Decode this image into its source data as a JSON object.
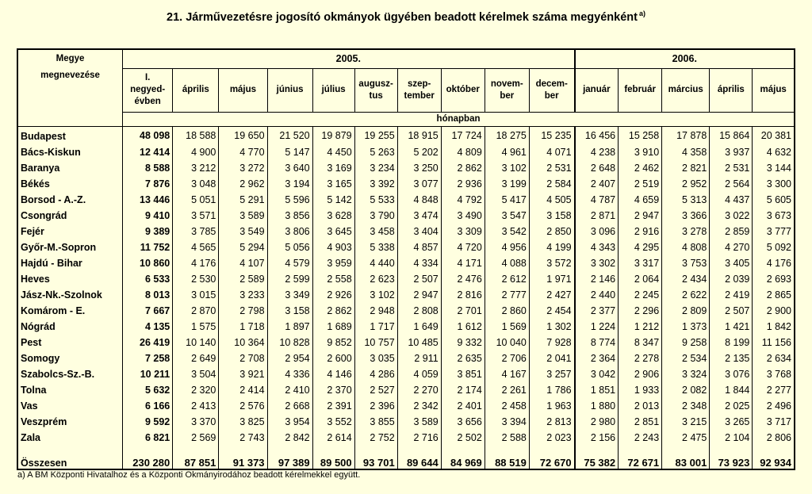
{
  "title": "21. Járművezetésre jogosító okmányok ügyében beadott kérelmek száma megyénként",
  "title_note": "a)",
  "header": {
    "county_label_line1": "Megye",
    "county_label_line2": "megnevezése",
    "year1": "2005.",
    "year2": "2006.",
    "unit_label": "hónapban",
    "col_q1_line1": "I.",
    "col_q1_line2": "negyed-",
    "col_q1_line3": "évben",
    "months_2005": [
      {
        "l1": "április",
        "l2": ""
      },
      {
        "l1": "május",
        "l2": ""
      },
      {
        "l1": "június",
        "l2": ""
      },
      {
        "l1": "július",
        "l2": ""
      },
      {
        "l1": "augusz-",
        "l2": "tus"
      },
      {
        "l1": "szep-",
        "l2": "tember"
      },
      {
        "l1": "október",
        "l2": ""
      },
      {
        "l1": "novem-",
        "l2": "ber"
      },
      {
        "l1": "decem-",
        "l2": "ber"
      }
    ],
    "months_2006": [
      {
        "l1": "január",
        "l2": ""
      },
      {
        "l1": "február",
        "l2": ""
      },
      {
        "l1": "március",
        "l2": ""
      },
      {
        "l1": "április",
        "l2": ""
      },
      {
        "l1": "május",
        "l2": ""
      }
    ]
  },
  "rows": [
    {
      "name": "Budapest",
      "values": [
        "48 098",
        "18 588",
        "19 650",
        "21 520",
        "19 879",
        "19 255",
        "18 915",
        "17 724",
        "18 275",
        "15 235",
        "16 456",
        "15 258",
        "17 878",
        "15 864",
        "20 381"
      ]
    },
    {
      "name": "Bács-Kiskun",
      "values": [
        "12 414",
        "4 900",
        "4 770",
        "5 147",
        "4 450",
        "5 263",
        "5 202",
        "4 809",
        "4 961",
        "4 071",
        "4 238",
        "3 910",
        "4 358",
        "3 937",
        "4 632"
      ]
    },
    {
      "name": "Baranya",
      "values": [
        "8 588",
        "3 212",
        "3 272",
        "3 640",
        "3 169",
        "3 234",
        "3 250",
        "2 862",
        "3 102",
        "2 531",
        "2 648",
        "2 462",
        "2 821",
        "2 531",
        "3 144"
      ]
    },
    {
      "name": "Békés",
      "values": [
        "7 876",
        "3 048",
        "2 962",
        "3 194",
        "3 165",
        "3 392",
        "3 077",
        "2 936",
        "3 199",
        "2 584",
        "2 407",
        "2 519",
        "2 952",
        "2 564",
        "3 300"
      ]
    },
    {
      "name": "Borsod - A.-Z.",
      "values": [
        "13 446",
        "5 051",
        "5 291",
        "5 596",
        "5 142",
        "5 533",
        "4 848",
        "4 792",
        "5 417",
        "4 505",
        "4 787",
        "4 659",
        "5 313",
        "4 437",
        "5 605"
      ]
    },
    {
      "name": "Csongrád",
      "values": [
        "9 410",
        "3 571",
        "3 589",
        "3 856",
        "3 628",
        "3 790",
        "3 474",
        "3 490",
        "3 547",
        "3 158",
        "2 871",
        "2 947",
        "3 366",
        "3 022",
        "3 673"
      ]
    },
    {
      "name": "Fejér",
      "values": [
        "9 389",
        "3 785",
        "3 549",
        "3 806",
        "3 645",
        "3 458",
        "3 404",
        "3 309",
        "3 542",
        "2 850",
        "3 096",
        "2 916",
        "3 278",
        "2 859",
        "3 777"
      ]
    },
    {
      "name": "Győr-M.-Sopron",
      "values": [
        "11 752",
        "4 565",
        "5 294",
        "5 056",
        "4 903",
        "5 338",
        "4 857",
        "4 720",
        "4 956",
        "4 199",
        "4 343",
        "4 295",
        "4 808",
        "4 270",
        "5 092"
      ]
    },
    {
      "name": "Hajdú - Bihar",
      "values": [
        "10 860",
        "4 176",
        "4 107",
        "4 579",
        "3 959",
        "4 440",
        "4 334",
        "4 171",
        "4 088",
        "3 572",
        "3 302",
        "3 317",
        "3 753",
        "3 405",
        "4 176"
      ]
    },
    {
      "name": "Heves",
      "values": [
        "6 533",
        "2 530",
        "2 589",
        "2 599",
        "2 558",
        "2 623",
        "2 507",
        "2 476",
        "2 612",
        "1 971",
        "2 146",
        "2 064",
        "2 434",
        "2 039",
        "2 693"
      ]
    },
    {
      "name": "Jász-Nk.-Szolnok",
      "values": [
        "8 013",
        "3 015",
        "3 233",
        "3 349",
        "2 926",
        "3 102",
        "2 947",
        "2 816",
        "2 777",
        "2 427",
        "2 440",
        "2 245",
        "2 622",
        "2 419",
        "2 865"
      ]
    },
    {
      "name": "Komárom - E.",
      "values": [
        "7 667",
        "2 870",
        "2 798",
        "3 158",
        "2 862",
        "2 948",
        "2 808",
        "2 701",
        "2 860",
        "2 454",
        "2 377",
        "2 296",
        "2 809",
        "2 507",
        "2 900"
      ]
    },
    {
      "name": "Nógrád",
      "values": [
        "4 135",
        "1 575",
        "1 718",
        "1 897",
        "1 689",
        "1 717",
        "1 649",
        "1 612",
        "1 569",
        "1 302",
        "1 224",
        "1 212",
        "1 373",
        "1 421",
        "1 842"
      ]
    },
    {
      "name": "Pest",
      "values": [
        "26 419",
        "10 140",
        "10 364",
        "10 828",
        "9 852",
        "10 757",
        "10 485",
        "9 332",
        "10 040",
        "7 928",
        "8 774",
        "8 347",
        "9 258",
        "8 199",
        "11 156"
      ]
    },
    {
      "name": "Somogy",
      "values": [
        "7 258",
        "2 649",
        "2 708",
        "2 954",
        "2 600",
        "3 035",
        "2 911",
        "2 635",
        "2 706",
        "2 041",
        "2 364",
        "2 278",
        "2 534",
        "2 135",
        "2 634"
      ]
    },
    {
      "name": "Szabolcs-Sz.-B.",
      "values": [
        "10 211",
        "3 504",
        "3 921",
        "4 336",
        "4 146",
        "4 286",
        "4 059",
        "3 851",
        "4 167",
        "3 257",
        "3 042",
        "2 906",
        "3 324",
        "3 076",
        "3 768"
      ]
    },
    {
      "name": "Tolna",
      "values": [
        "5 632",
        "2 320",
        "2 414",
        "2 410",
        "2 370",
        "2 527",
        "2 270",
        "2 174",
        "2 261",
        "1 786",
        "1 851",
        "1 933",
        "2 082",
        "1 844",
        "2 277"
      ]
    },
    {
      "name": "Vas",
      "values": [
        "6 166",
        "2 413",
        "2 576",
        "2 668",
        "2 391",
        "2 396",
        "2 342",
        "2 401",
        "2 458",
        "1 963",
        "1 880",
        "2 013",
        "2 348",
        "2 025",
        "2 496"
      ]
    },
    {
      "name": "Veszprém",
      "values": [
        "9 592",
        "3 370",
        "3 825",
        "3 954",
        "3 552",
        "3 855",
        "3 589",
        "3 656",
        "3 394",
        "2 813",
        "2 980",
        "2 851",
        "3 215",
        "3 265",
        "3 717"
      ]
    },
    {
      "name": "Zala",
      "values": [
        "6 821",
        "2 569",
        "2 743",
        "2 842",
        "2 614",
        "2 752",
        "2 716",
        "2 502",
        "2 588",
        "2 023",
        "2 156",
        "2 243",
        "2 475",
        "2 104",
        "2 806"
      ]
    }
  ],
  "total": {
    "name": "Összesen",
    "values": [
      "230 280",
      "87 851",
      "91 373",
      "97 389",
      "89 500",
      "93 701",
      "89 644",
      "84 969",
      "88 519",
      "72 670",
      "75 382",
      "72 671",
      "83 001",
      "73 923",
      "92 934"
    ]
  },
  "footnote": "a) A BM Központi Hivatalhoz és a Központi Okmányirodához beadott kérelmekkel együtt."
}
